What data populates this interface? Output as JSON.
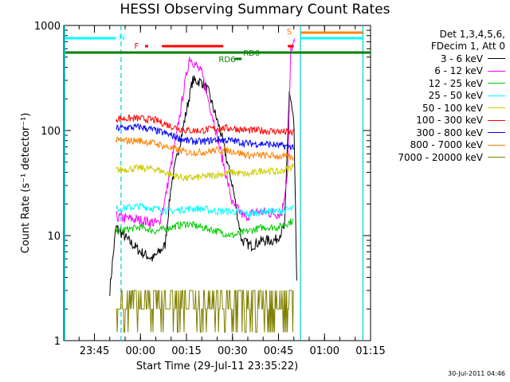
{
  "colors": {
    "three_six": "#000000",
    "six_twelve": "#ff00ff",
    "twelve_25": "#00cc00",
    "t25_50": "#00ffff",
    "t50_100": "#cccc00",
    "t100_300": "#ff0000",
    "t300_800": "#0000ff",
    "t800_7000": "#ff8000",
    "t7000_20000": "#808000",
    "attenuator": "#00cccc",
    "flare_bar": "#ff0000",
    "day_bar": "#008000"
  },
  "stamp": "30-Jul-2011 04:46",
  "chart_data": {
    "type": "line",
    "title": "HESSI Observing Summary Count Rates",
    "xlabel": "Start Time (29-Jul-11 23:35:22)",
    "ylabel": "Count Rate (s⁻¹ detector⁻¹)",
    "y_scale": "log",
    "ylim": [
      1,
      1000
    ],
    "xlim": [
      "23:35",
      "01:15"
    ],
    "x_ticks": [
      "23:45",
      "00:00",
      "00:15",
      "00:30",
      "00:45",
      "01:00",
      "01:15"
    ],
    "y_ticks": [
      "1",
      "10",
      "100",
      "1000"
    ],
    "legend_header": [
      "Det 1,3,4,5,6,",
      "FDecim 1, Att 0"
    ],
    "legend_position": "right, outside plot",
    "grid": false,
    "series": [
      {
        "name": "3 - 6 keV",
        "color_key": "three_six",
        "points": [
          [
            "23:50:00",
            3
          ],
          [
            "23:52:00",
            12
          ],
          [
            "23:56:00",
            9
          ],
          [
            "00:00:00",
            7
          ],
          [
            "00:04:00",
            6
          ],
          [
            "00:08:00",
            8
          ],
          [
            "00:10:00",
            30
          ],
          [
            "00:14:00",
            110
          ],
          [
            "00:17:00",
            300
          ],
          [
            "00:20:00",
            290
          ],
          [
            "00:22:00",
            240
          ],
          [
            "00:26:00",
            100
          ],
          [
            "00:30:00",
            30
          ],
          [
            "00:33:00",
            9
          ],
          [
            "00:36:00",
            8
          ],
          [
            "00:40:00",
            9
          ],
          [
            "00:44:00",
            9
          ],
          [
            "00:47:00",
            12
          ],
          [
            "00:48:30",
            240
          ],
          [
            "00:50:00",
            120
          ],
          [
            "00:51:00",
            3
          ]
        ]
      },
      {
        "name": "6 - 12 keV",
        "color_key": "six_twelve",
        "points": [
          [
            "23:52:00",
            15
          ],
          [
            "00:00:00",
            14
          ],
          [
            "00:06:00",
            13
          ],
          [
            "00:08:00",
            22
          ],
          [
            "00:12:00",
            100
          ],
          [
            "00:14:00",
            230
          ],
          [
            "00:16:00",
            500
          ],
          [
            "00:18:00",
            420
          ],
          [
            "00:20:00",
            350
          ],
          [
            "00:24:00",
            120
          ],
          [
            "00:30:00",
            20
          ],
          [
            "00:34:00",
            15
          ],
          [
            "00:38:00",
            17
          ],
          [
            "00:46:00",
            16
          ],
          [
            "00:48:00",
            40
          ],
          [
            "00:49:00",
            600
          ],
          [
            "00:50:30",
            700
          ]
        ]
      },
      {
        "name": "12 - 25 keV",
        "color_key": "twelve_25",
        "points": [
          [
            "23:52:00",
            11
          ],
          [
            "00:00:00",
            12
          ],
          [
            "00:05:00",
            11
          ],
          [
            "00:10:00",
            12
          ],
          [
            "00:15:00",
            13
          ],
          [
            "00:20:00",
            12
          ],
          [
            "00:25:00",
            11
          ],
          [
            "00:30:00",
            10
          ],
          [
            "00:35:00",
            11
          ],
          [
            "00:40:00",
            12
          ],
          [
            "00:45:00",
            12
          ],
          [
            "00:50:00",
            14
          ]
        ]
      },
      {
        "name": "25 - 50 keV",
        "color_key": "t25_50",
        "points": [
          [
            "23:52:00",
            18
          ],
          [
            "00:00:00",
            19
          ],
          [
            "00:05:00",
            18
          ],
          [
            "00:10:00",
            17
          ],
          [
            "00:15:00",
            18
          ],
          [
            "00:20:00",
            18
          ],
          [
            "00:25:00",
            17
          ],
          [
            "00:30:00",
            17
          ],
          [
            "00:35:00",
            16
          ],
          [
            "00:40:00",
            17
          ],
          [
            "00:45:00",
            17
          ],
          [
            "00:50:00",
            18
          ]
        ]
      },
      {
        "name": "50 - 100 keV",
        "color_key": "t50_100",
        "points": [
          [
            "23:52:00",
            42
          ],
          [
            "00:00:00",
            44
          ],
          [
            "00:05:00",
            43
          ],
          [
            "00:10:00",
            38
          ],
          [
            "00:15:00",
            35
          ],
          [
            "00:20:00",
            36
          ],
          [
            "00:25:00",
            38
          ],
          [
            "00:30:00",
            40
          ],
          [
            "00:35:00",
            38
          ],
          [
            "00:40:00",
            42
          ],
          [
            "00:45:00",
            40
          ],
          [
            "00:50:00",
            46
          ]
        ]
      },
      {
        "name": "100 - 300 keV",
        "color_key": "t100_300",
        "points": [
          [
            "23:52:00",
            130
          ],
          [
            "00:00:00",
            130
          ],
          [
            "00:05:00",
            125
          ],
          [
            "00:10:00",
            110
          ],
          [
            "00:15:00",
            100
          ],
          [
            "00:20:00",
            100
          ],
          [
            "00:25:00",
            105
          ],
          [
            "00:30:00",
            105
          ],
          [
            "00:35:00",
            100
          ],
          [
            "00:40:00",
            100
          ],
          [
            "00:45:00",
            98
          ],
          [
            "00:50:00",
            95
          ]
        ]
      },
      {
        "name": "300 - 800 keV",
        "color_key": "t300_800",
        "points": [
          [
            "23:52:00",
            105
          ],
          [
            "00:00:00",
            108
          ],
          [
            "00:05:00",
            100
          ],
          [
            "00:10:00",
            90
          ],
          [
            "00:15:00",
            80
          ],
          [
            "00:20:00",
            78
          ],
          [
            "00:25:00",
            82
          ],
          [
            "00:30:00",
            80
          ],
          [
            "00:35:00",
            75
          ],
          [
            "00:40:00",
            75
          ],
          [
            "00:45:00",
            72
          ],
          [
            "00:50:00",
            70
          ]
        ]
      },
      {
        "name": "800 - 7000 keV",
        "color_key": "t800_7000",
        "points": [
          [
            "23:52:00",
            80
          ],
          [
            "00:00:00",
            80
          ],
          [
            "00:05:00",
            75
          ],
          [
            "00:10:00",
            68
          ],
          [
            "00:15:00",
            62
          ],
          [
            "00:20:00",
            62
          ],
          [
            "00:25:00",
            65
          ],
          [
            "00:30:00",
            64
          ],
          [
            "00:35:00",
            58
          ],
          [
            "00:40:00",
            58
          ],
          [
            "00:45:00",
            57
          ],
          [
            "00:50:00",
            55
          ]
        ]
      },
      {
        "name": "7000 - 20000 keV",
        "color_key": "t7000_20000",
        "points": [
          [
            "23:52:00",
            2
          ],
          [
            "23:56:00",
            2.5
          ],
          [
            "00:00:00",
            2
          ],
          [
            "00:05:00",
            2
          ],
          [
            "00:10:00",
            2
          ],
          [
            "00:15:00",
            2
          ],
          [
            "00:20:00",
            2
          ],
          [
            "00:25:00",
            2
          ],
          [
            "00:30:00",
            2
          ],
          [
            "00:35:00",
            2
          ],
          [
            "00:40:00",
            2
          ],
          [
            "00:45:00",
            2
          ],
          [
            "00:50:00",
            2
          ]
        ]
      }
    ],
    "markers": [
      {
        "label": "N",
        "color_key": "t25_50"
      },
      {
        "label": "F",
        "color_key": "flare_bar"
      },
      {
        "label": "RD6",
        "color_key": "day_bar"
      },
      {
        "label": "RD0",
        "color_key": "day_bar"
      },
      {
        "label": "S",
        "color_key": "t800_7000"
      }
    ]
  }
}
